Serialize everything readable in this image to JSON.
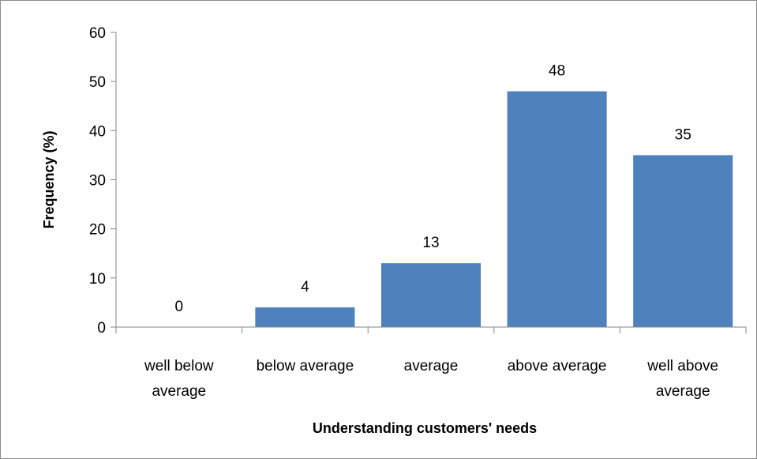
{
  "chart_data": {
    "type": "bar",
    "categories": [
      "well below average",
      "below average",
      "average",
      "above average",
      "well above average"
    ],
    "category_lines": [
      [
        "well below",
        "average"
      ],
      [
        "below average"
      ],
      [
        "average"
      ],
      [
        "above average"
      ],
      [
        "well above",
        "average"
      ]
    ],
    "values": [
      0,
      4,
      13,
      48,
      35
    ],
    "data_labels": [
      "0",
      "4",
      "13",
      "48",
      "35"
    ],
    "title": "",
    "xlabel": "Understanding customers' needs",
    "ylabel": "Frequency (%)",
    "ylim": [
      0,
      60
    ],
    "yticks": [
      0,
      10,
      20,
      30,
      40,
      50,
      60
    ],
    "grid": false,
    "legend": "none",
    "bar_color": "#4f81bd"
  }
}
